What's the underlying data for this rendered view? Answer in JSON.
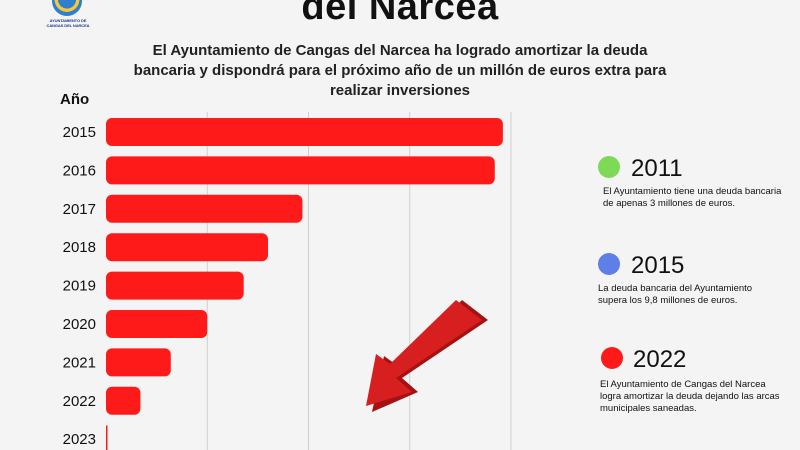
{
  "logo": {
    "caption": "AYUNTAMIENTO DE CANGAS DEL NARCEA"
  },
  "header": {
    "title": "del Narcea",
    "subtitle": "El Ayuntamiento de Cangas del Narcea ha logrado amortizar la deuda bancaria y dispondrá para el próximo año de un millón de euros extra para realizar inversiones"
  },
  "chart_data": {
    "type": "bar",
    "orientation": "horizontal",
    "ylabel": "Año",
    "categories": [
      "2015",
      "2016",
      "2017",
      "2018",
      "2019",
      "2020",
      "2021",
      "2022",
      "2023"
    ],
    "values": [
      9.8,
      9.6,
      4.85,
      4.0,
      3.4,
      2.5,
      1.6,
      0.85,
      0.03
    ],
    "xlim": [
      0,
      10
    ],
    "grid": true,
    "bar_color": "#ff1a1a",
    "arrow": "down-left"
  },
  "notes": [
    {
      "year": "2011",
      "color": "#7ed957",
      "text": "El Ayuntamiento tiene una deuda bancaria de apenas  3 millones de euros."
    },
    {
      "year": "2015",
      "color": "#5e7ee8",
      "text": "La deuda bancaria del Ayuntamiento supera  los 9,8 millones de euros."
    },
    {
      "year": "2022",
      "color": "#ff1a1a",
      "text": "El Ayuntamiento de Cangas del Narcea logra amortizar la deuda dejando las arcas municipales saneadas."
    }
  ]
}
